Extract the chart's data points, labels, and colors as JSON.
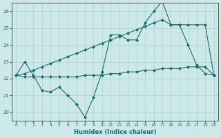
{
  "xlabel": "Humidex (Indice chaleur)",
  "bg_color": "#cce8e8",
  "line_color": "#1a6b6b",
  "grid_color": "#b0d4d4",
  "xlim": [
    -0.5,
    23.5
  ],
  "ylim": [
    19.5,
    26.5
  ],
  "yticks": [
    20,
    21,
    22,
    23,
    24,
    25,
    26
  ],
  "xticks": [
    0,
    1,
    2,
    3,
    4,
    5,
    6,
    7,
    8,
    9,
    10,
    11,
    12,
    13,
    14,
    15,
    16,
    17,
    18,
    19,
    20,
    21,
    22,
    23
  ],
  "series1_x": [
    0,
    1,
    2,
    3,
    4,
    5,
    6,
    7,
    8,
    9,
    10,
    11,
    12,
    13,
    14,
    15,
    16,
    17,
    18,
    19,
    20,
    21,
    22,
    23
  ],
  "series1_y": [
    22.2,
    23.0,
    22.2,
    21.3,
    21.2,
    21.5,
    21.0,
    20.5,
    19.7,
    20.9,
    22.4,
    24.6,
    24.6,
    24.3,
    24.3,
    25.3,
    26.0,
    26.6,
    25.2,
    25.2,
    24.0,
    22.8,
    22.3,
    22.2
  ],
  "series2_x": [
    0,
    1,
    2,
    3,
    4,
    5,
    6,
    7,
    8,
    9,
    10,
    11,
    12,
    13,
    14,
    15,
    16,
    17,
    18,
    19,
    20,
    21,
    22,
    23
  ],
  "series2_y": [
    22.2,
    22.3,
    22.5,
    22.7,
    22.9,
    23.1,
    23.3,
    23.5,
    23.7,
    23.9,
    24.1,
    24.3,
    24.5,
    24.7,
    24.9,
    25.1,
    25.3,
    25.5,
    25.2,
    25.2,
    25.2,
    25.2,
    25.2,
    22.2
  ],
  "series3_x": [
    0,
    1,
    2,
    3,
    4,
    5,
    6,
    7,
    8,
    9,
    10,
    11,
    12,
    13,
    14,
    15,
    16,
    17,
    18,
    19,
    20,
    21,
    22,
    23
  ],
  "series3_y": [
    22.2,
    22.1,
    22.1,
    22.1,
    22.1,
    22.1,
    22.1,
    22.1,
    22.2,
    22.2,
    22.2,
    22.3,
    22.3,
    22.4,
    22.4,
    22.5,
    22.5,
    22.6,
    22.6,
    22.6,
    22.7,
    22.7,
    22.7,
    22.2
  ]
}
